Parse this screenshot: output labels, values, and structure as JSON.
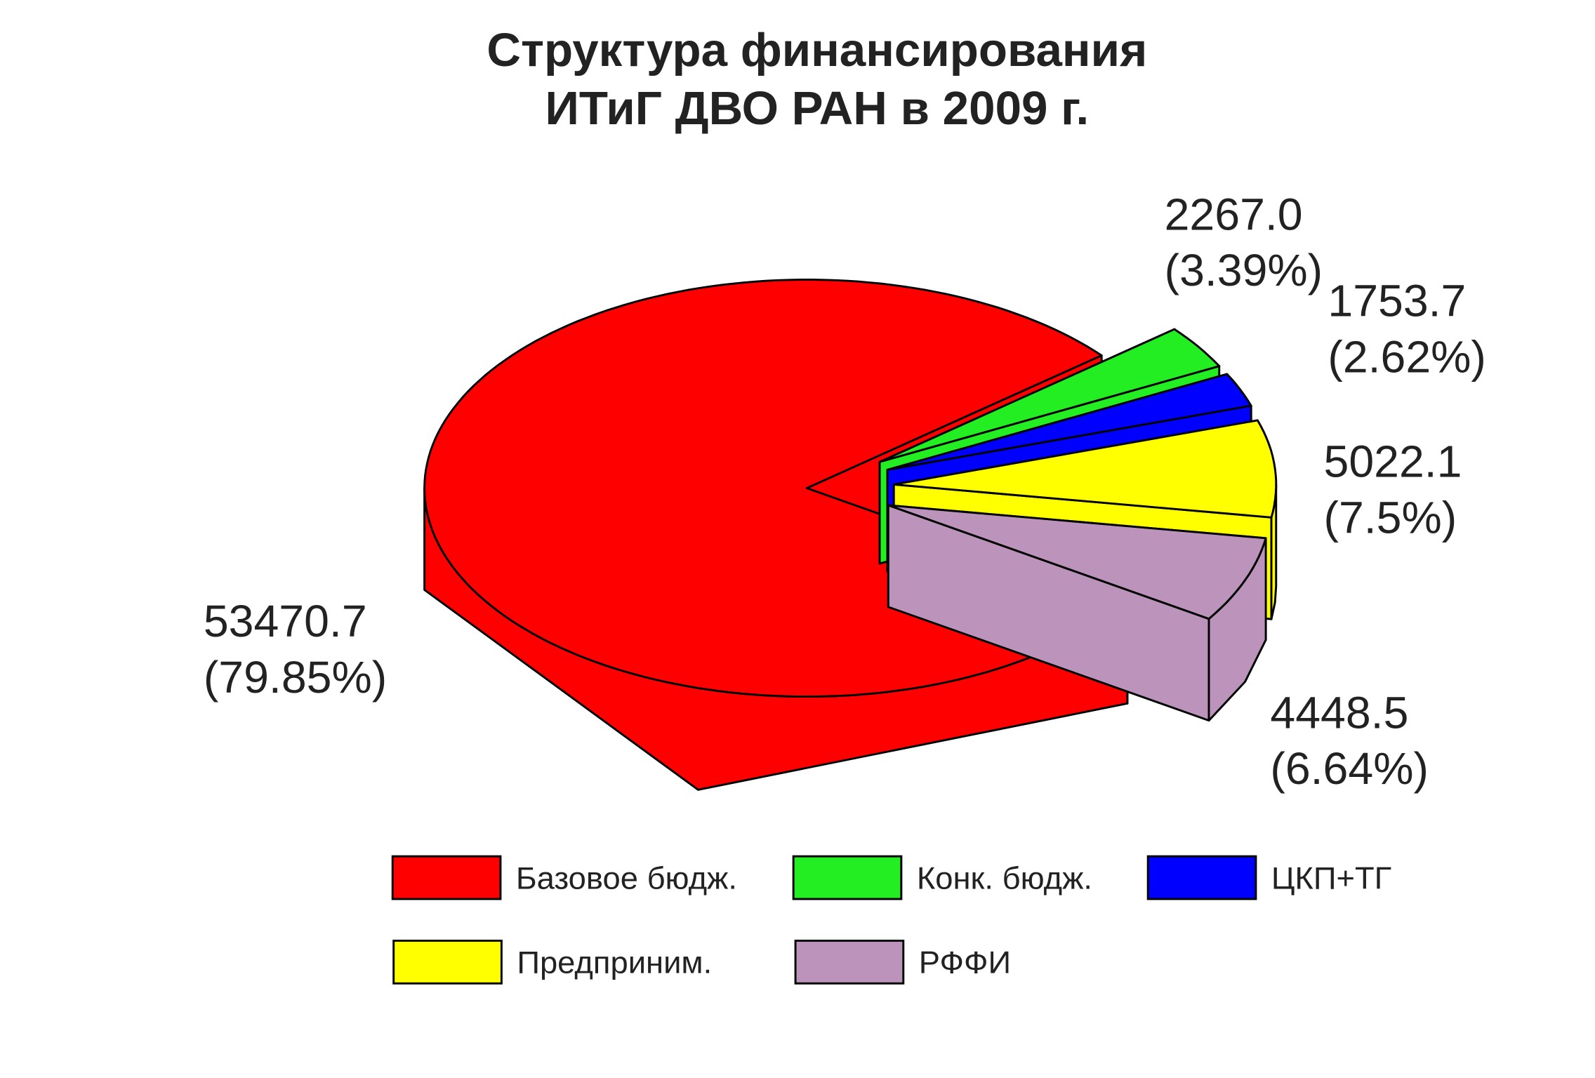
{
  "chart_data": {
    "type": "pie3d",
    "title": [
      "Структура финансирования",
      "ИТиГ ДВО РАН в 2009 г."
    ],
    "categories": [
      "Базовое бюдж.",
      "Конк. бюдж.",
      "ЦКП+ТГ",
      "Предприним.",
      "РФФИ"
    ],
    "values": [
      53470.7,
      2267.0,
      1753.7,
      5022.1,
      4448.5
    ],
    "value_labels": [
      "53470.7",
      "2267.0",
      "1753.7",
      "5022.1",
      "4448.5"
    ],
    "percent_labels": [
      "(79.85%)",
      "(3.39%)",
      "(2.62%)",
      "(7.5%)",
      "(6.64%)"
    ],
    "colors": [
      "#ff0000",
      "#22ee22",
      "#0000ff",
      "#ffff00",
      "#bb93bb"
    ]
  }
}
